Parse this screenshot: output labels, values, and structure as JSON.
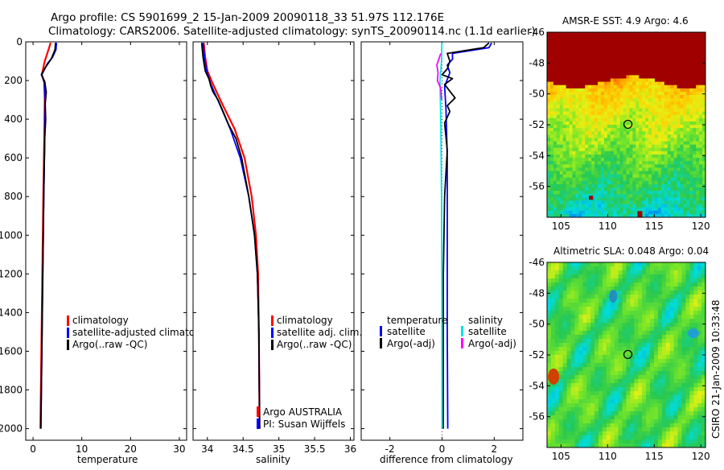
{
  "header": {
    "line1": "Argo profile: CS 5901699_2 15-Jan-2009 20090118_33 51.97S 112.176E",
    "line2": "Climatology: CARS2006. Satellite-adjusted climatology: synTS_20090114.nc (1.1d earlier)"
  },
  "colors": {
    "climatology": "#ff0000",
    "satellite": "#0000ff",
    "argo": "#000000",
    "sal_satellite": "#00e5e5",
    "sal_argo": "#ff00ff"
  },
  "chart_data": [
    {
      "type": "line",
      "name": "temperature-profile",
      "xlabel": "temperature",
      "xlim": [
        -1.5,
        31.5
      ],
      "ylim": [
        2060,
        0
      ],
      "y_reversed": true,
      "xticks": [
        0,
        10,
        20,
        30
      ],
      "xtick_labels": [
        "0",
        "10",
        "20",
        "30"
      ],
      "yticks": [
        0,
        200,
        400,
        600,
        800,
        1000,
        1200,
        1400,
        1600,
        1800,
        2000
      ],
      "ytick_labels": [
        "0",
        "200",
        "400",
        "600",
        "800",
        "1000",
        "1200",
        "1400",
        "1600",
        "1800",
        "2000"
      ],
      "legend": [
        "climatology",
        "satellite-adjusted climatology",
        "Argo(..raw -QC)"
      ],
      "series": [
        {
          "name": "climatology",
          "color": "#ff0000",
          "points": [
            [
              3.6,
              5
            ],
            [
              3.3,
              30
            ],
            [
              2.4,
              100
            ],
            [
              1.8,
              170
            ],
            [
              2.3,
              210
            ],
            [
              2.4,
              300
            ],
            [
              2.3,
              500
            ],
            [
              2.1,
              800
            ],
            [
              1.9,
              1200
            ],
            [
              1.7,
              1600
            ],
            [
              1.5,
              2000
            ]
          ]
        },
        {
          "name": "satellite-adjusted climatology",
          "color": "#0000ff",
          "points": [
            [
              4.8,
              5
            ],
            [
              4.7,
              40
            ],
            [
              4.0,
              80
            ],
            [
              3.0,
              110
            ],
            [
              1.8,
              170
            ],
            [
              2.3,
              210
            ],
            [
              2.5,
              300
            ],
            [
              2.4,
              500
            ],
            [
              2.2,
              800
            ],
            [
              2.0,
              1200
            ],
            [
              1.8,
              1600
            ],
            [
              1.6,
              2000
            ]
          ]
        },
        {
          "name": "Argo(..raw -QC)",
          "color": "#000000",
          "points": [
            [
              4.6,
              5
            ],
            [
              4.5,
              40
            ],
            [
              3.7,
              90
            ],
            [
              2.6,
              130
            ],
            [
              1.7,
              170
            ],
            [
              2.4,
              205
            ],
            [
              2.7,
              260
            ],
            [
              2.5,
              320
            ],
            [
              2.6,
              400
            ],
            [
              2.4,
              500
            ],
            [
              2.2,
              800
            ],
            [
              2.0,
              1200
            ],
            [
              1.8,
              1600
            ],
            [
              1.6,
              2000
            ]
          ]
        }
      ]
    },
    {
      "type": "line",
      "name": "salinity-profile",
      "xlabel": "salinity",
      "xlim": [
        33.8,
        36.05
      ],
      "ylim": [
        2060,
        0
      ],
      "y_reversed": true,
      "xticks": [
        34,
        34.5,
        35,
        35.5,
        36
      ],
      "xtick_labels": [
        "34",
        "34.5",
        "35",
        "35.5",
        "36"
      ],
      "legend": [
        "climatology",
        "satellite adj. clim.",
        "Argo(..raw -QC)"
      ],
      "annotation": [
        "Argo AUSTRALIA",
        "PI: Susan Wijffels"
      ],
      "series": [
        {
          "name": "climatology",
          "color": "#ff0000",
          "points": [
            [
              33.95,
              5
            ],
            [
              33.97,
              80
            ],
            [
              34.0,
              150
            ],
            [
              34.08,
              220
            ],
            [
              34.22,
              330
            ],
            [
              34.38,
              450
            ],
            [
              34.52,
              600
            ],
            [
              34.62,
              800
            ],
            [
              34.68,
              1000
            ],
            [
              34.71,
              1200
            ],
            [
              34.72,
              1500
            ],
            [
              34.73,
              2000
            ]
          ]
        },
        {
          "name": "satellite adj. clim.",
          "color": "#0000ff",
          "points": [
            [
              33.94,
              5
            ],
            [
              33.96,
              80
            ],
            [
              33.99,
              150
            ],
            [
              34.05,
              220
            ],
            [
              34.18,
              330
            ],
            [
              34.32,
              450
            ],
            [
              34.46,
              600
            ],
            [
              34.58,
              800
            ],
            [
              34.66,
              1000
            ],
            [
              34.7,
              1200
            ],
            [
              34.72,
              1500
            ],
            [
              34.73,
              2000
            ]
          ]
        },
        {
          "name": "Argo(..raw -QC)",
          "color": "#000000",
          "points": [
            [
              33.92,
              5
            ],
            [
              33.94,
              80
            ],
            [
              33.97,
              150
            ],
            [
              34.02,
              190
            ],
            [
              34.05,
              230
            ],
            [
              34.08,
              260
            ],
            [
              34.15,
              300
            ],
            [
              34.22,
              360
            ],
            [
              34.3,
              430
            ],
            [
              34.4,
              500
            ],
            [
              34.48,
              600
            ],
            [
              34.58,
              800
            ],
            [
              34.66,
              1000
            ],
            [
              34.7,
              1200
            ],
            [
              34.72,
              1500
            ],
            [
              34.73,
              2000
            ]
          ]
        }
      ]
    },
    {
      "type": "line",
      "name": "difference-profile",
      "xlabel": "difference from climatology",
      "xlim": [
        -3.1,
        3.1
      ],
      "ylim": [
        2060,
        0
      ],
      "y_reversed": true,
      "xticks": [
        -2,
        0,
        2
      ],
      "xtick_labels": [
        "-2",
        "0",
        "2"
      ],
      "legend_temperature": [
        "temperature",
        "satellite",
        "Argo(-adj)"
      ],
      "legend_salinity": [
        "salinity",
        "satellite",
        "Argo(-adj)"
      ],
      "series": [
        {
          "name": "temperature satellite",
          "color": "#0000ff",
          "points": [
            [
              1.9,
              5
            ],
            [
              1.8,
              30
            ],
            [
              0.4,
              60
            ],
            [
              0.4,
              90
            ],
            [
              0.2,
              120
            ],
            [
              0.3,
              160
            ],
            [
              0.1,
              230
            ],
            [
              0.15,
              350
            ],
            [
              0.2,
              600
            ],
            [
              0.2,
              1000
            ],
            [
              0.2,
              1500
            ],
            [
              0.22,
              2000
            ]
          ]
        },
        {
          "name": "temperature Argo(-adj)",
          "color": "#000000",
          "points": [
            [
              1.8,
              5
            ],
            [
              1.6,
              30
            ],
            [
              0.2,
              60
            ],
            [
              0.3,
              100
            ],
            [
              0.2,
              140
            ],
            [
              0.0,
              170
            ],
            [
              0.4,
              190
            ],
            [
              0.1,
              220
            ],
            [
              0.5,
              290
            ],
            [
              0.2,
              330
            ],
            [
              0.3,
              360
            ],
            [
              0.1,
              420
            ],
            [
              0.2,
              560
            ],
            [
              0.1,
              800
            ],
            [
              0.05,
              1200
            ],
            [
              0.05,
              1600
            ],
            [
              0.05,
              2000
            ]
          ]
        },
        {
          "name": "salinity satellite",
          "color": "#00e5e5",
          "points": [
            [
              -0.01,
              5
            ],
            [
              -0.02,
              100
            ],
            [
              -0.08,
              200
            ],
            [
              -0.05,
              400
            ],
            [
              -0.02,
              800
            ],
            [
              -0.01,
              1200
            ],
            [
              0.0,
              2000
            ]
          ]
        },
        {
          "name": "salinity Argo(-adj)",
          "color": "#ff00ff",
          "points": [
            [
              -0.05,
              60
            ],
            [
              -0.2,
              120
            ],
            [
              -0.15,
              160
            ],
            [
              -0.18,
              200
            ],
            [
              -0.05,
              240
            ],
            [
              -0.02,
              300
            ]
          ]
        }
      ]
    },
    {
      "type": "heatmap",
      "name": "sst-map",
      "title": "AMSR-E SST: 4.9 Argo: 4.6",
      "xlim": [
        103.5,
        120.5
      ],
      "ylim": [
        -58,
        -46
      ],
      "xticks": [
        105,
        110,
        115,
        120
      ],
      "yticks": [
        -46,
        -48,
        -50,
        -52,
        -54,
        -56
      ],
      "xtick_labels": [
        "105",
        "110",
        "115",
        "120"
      ],
      "ytick_labels": [
        "-46",
        "-48",
        "-50",
        "-52",
        "-54",
        "-56"
      ],
      "marker": {
        "lon": 112.176,
        "lat": -51.97
      }
    },
    {
      "type": "heatmap",
      "name": "sla-map",
      "title": "Altimetric SLA: 0.048 Argo: 0.04",
      "xlim": [
        103.5,
        120.5
      ],
      "ylim": [
        -58,
        -46
      ],
      "xticks": [
        105,
        110,
        115,
        120
      ],
      "yticks": [
        -46,
        -48,
        -50,
        -52,
        -54,
        -56
      ],
      "xtick_labels": [
        "105",
        "110",
        "115",
        "120"
      ],
      "ytick_labels": [
        "-46",
        "-48",
        "-50",
        "-52",
        "-54",
        "-56"
      ],
      "marker": {
        "lon": 112.176,
        "lat": -51.97
      },
      "side_label": "CSIRO 21-Jan-2009 10:33:48"
    }
  ]
}
